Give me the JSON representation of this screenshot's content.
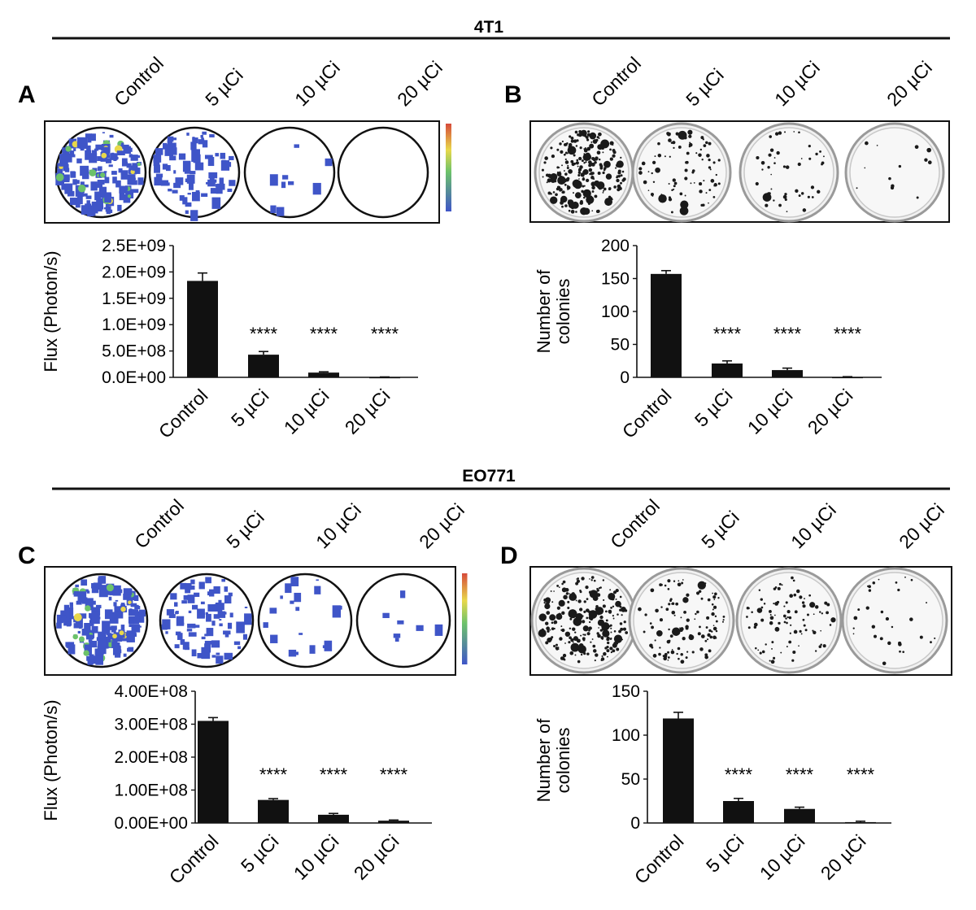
{
  "sections": [
    {
      "title": "4T1"
    },
    {
      "title": "EO771"
    }
  ],
  "panel_letters": [
    "A",
    "B",
    "C",
    "D"
  ],
  "conditions": [
    "Control",
    "5 µCi",
    "10 µCi",
    "20 µCi"
  ],
  "colors": {
    "bar": "#111111",
    "bioluminescence_blue": "#3f55c8",
    "bioluminescence_green": "#6cc26a",
    "bioluminescence_yellow": "#e8d84a",
    "bioluminescence_red": "#d64a3a",
    "colony": "#1a1a1a",
    "dish_fill": "#f1f1f1"
  },
  "chart_data": [
    {
      "panel": "A",
      "type": "bar",
      "categories": [
        "Control",
        "5 µCi",
        "10 µCi",
        "20 µCi"
      ],
      "values": [
        1830000000,
        430000000,
        90000000,
        5000000
      ],
      "errors": [
        150000000,
        60000000,
        15000000,
        3000000
      ],
      "annotations": [
        "",
        "****",
        "****",
        "****"
      ],
      "ylabel": "Flux (Photon/s)",
      "ylim": [
        0,
        2500000000
      ],
      "yticks": [
        0,
        500000000,
        1000000000,
        1500000000,
        2000000000,
        2500000000
      ],
      "ytick_labels": [
        "0.0E+00",
        "5.0E+08",
        "1.0E+09",
        "1.5E+09",
        "2.0E+09",
        "2.5E+09"
      ]
    },
    {
      "panel": "B",
      "type": "bar",
      "categories": [
        "Control",
        "5 µCi",
        "10 µCi",
        "20 µCi"
      ],
      "values": [
        157,
        21,
        11,
        0.5
      ],
      "errors": [
        5,
        4,
        3,
        0.5
      ],
      "annotations": [
        "",
        "****",
        "****",
        "****"
      ],
      "ylabel": "Number of colonies",
      "ylim": [
        0,
        200
      ],
      "yticks": [
        0,
        50,
        100,
        150,
        200
      ],
      "ytick_labels": [
        "0",
        "50",
        "100",
        "150",
        "200"
      ]
    },
    {
      "panel": "C",
      "type": "bar",
      "categories": [
        "Control",
        "5 µCi",
        "10 µCi",
        "20 µCi"
      ],
      "values": [
        310000000,
        70000000,
        25000000,
        7000000
      ],
      "errors": [
        10000000,
        4000000,
        4000000,
        2000000
      ],
      "annotations": [
        "",
        "****",
        "****",
        "****"
      ],
      "ylabel": "Flux (Photon/s)",
      "ylim": [
        0,
        400000000
      ],
      "yticks": [
        0,
        100000000,
        200000000,
        300000000,
        400000000
      ],
      "ytick_labels": [
        "0.00E+00",
        "1.00E+08",
        "2.00E+08",
        "3.00E+08",
        "4.00E+08"
      ]
    },
    {
      "panel": "D",
      "type": "bar",
      "categories": [
        "Control",
        "5 µCi",
        "10 µCi",
        "20 µCi"
      ],
      "values": [
        119,
        25,
        16,
        1
      ],
      "errors": [
        7,
        3,
        2,
        1
      ],
      "annotations": [
        "",
        "****",
        "****",
        "****"
      ],
      "ylabel": "Number of colonies",
      "ylim": [
        0,
        150
      ],
      "yticks": [
        0,
        50,
        100,
        150
      ],
      "ytick_labels": [
        "0",
        "50",
        "100",
        "150"
      ]
    }
  ],
  "well_images": [
    {
      "panel": "A",
      "kind": "bioluminescence",
      "signal": [
        0.9,
        0.45,
        0.05,
        0.0
      ]
    },
    {
      "panel": "B",
      "kind": "colony",
      "density": [
        0.95,
        0.35,
        0.18,
        0.05
      ]
    },
    {
      "panel": "C",
      "kind": "bioluminescence",
      "signal": [
        0.95,
        0.5,
        0.12,
        0.04
      ]
    },
    {
      "panel": "D",
      "kind": "colony",
      "density": [
        0.9,
        0.45,
        0.35,
        0.12
      ]
    }
  ]
}
